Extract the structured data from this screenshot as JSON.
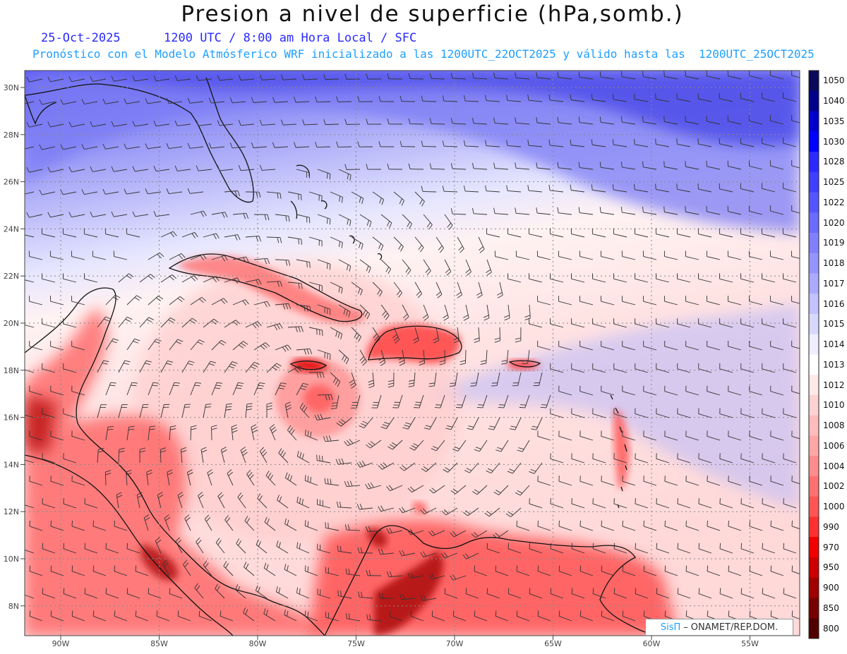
{
  "title": "Presion a nivel de superficie (hPa,somb.)",
  "subtitle_date": "25-Oct-2025",
  "subtitle_time": "1200 UTC / 8:00 am Hora Local / SFC",
  "subtitle_model": "Pronóstico con el Modelo Atmósferico WRF inicializado a las 1200UTC_22OCT2025 y válido hasta las  1200UTC_25OCT2025",
  "credit_brand": "SisΠ",
  "credit_text": "ONAMET/REP.DOM.",
  "latitude_labels": [
    "30N",
    "28N",
    "26N",
    "24N",
    "22N",
    "20N",
    "18N",
    "16N",
    "14N",
    "12N",
    "10N",
    "8N"
  ],
  "longitude_labels": [
    "90W",
    "85W",
    "80W",
    "75W",
    "70W",
    "65W",
    "60W",
    "55W"
  ],
  "colorbar": {
    "levels": [
      "1050",
      "1040",
      "1035",
      "1030",
      "1028",
      "1025",
      "1022",
      "1020",
      "1019",
      "1018",
      "1017",
      "1016",
      "1015",
      "1014",
      "1013",
      "1012",
      "1010",
      "1008",
      "1006",
      "1004",
      "1002",
      "1000",
      "990",
      "970",
      "950",
      "900",
      "850",
      "800"
    ],
    "colors": [
      "#0a0a5a",
      "#00008b",
      "#0000cd",
      "#0000ff",
      "#2a2aff",
      "#3f3fff",
      "#5555ff",
      "#6b6bff",
      "#8080ff",
      "#9494ff",
      "#aaaaff",
      "#c2c2ff",
      "#d8d8ff",
      "#eeeeff",
      "#ffffff",
      "#ffe8e8",
      "#ffd2d2",
      "#ffbcbc",
      "#ffa6a6",
      "#ff8c8c",
      "#ff7070",
      "#ff5555",
      "#ff3030",
      "#f00000",
      "#cc0000",
      "#a00000",
      "#780000",
      "#500000"
    ]
  }
}
